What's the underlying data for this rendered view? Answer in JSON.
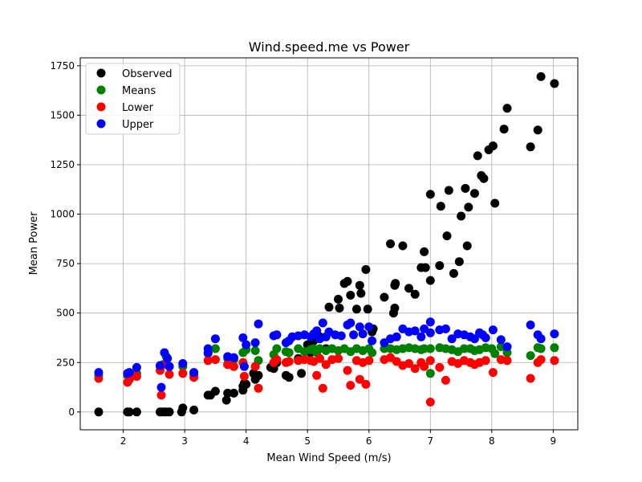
{
  "chart_data": {
    "type": "scatter",
    "title": "Wind.speed.me vs Power",
    "xlabel": "Mean Wind Speed (m/s)",
    "ylabel": "Mean Power",
    "xlim": [
      1.3,
      9.4
    ],
    "ylim": [
      -90,
      1790
    ],
    "xticks": [
      2,
      3,
      4,
      5,
      6,
      7,
      8,
      9
    ],
    "yticks": [
      0,
      250,
      500,
      750,
      1000,
      1250,
      1500,
      1750
    ],
    "grid": true,
    "legend_position": "top-left",
    "series": [
      {
        "name": "Observed",
        "color": "#000000",
        "points": [
          [
            1.6,
            0
          ],
          [
            2.07,
            0
          ],
          [
            2.1,
            0
          ],
          [
            2.22,
            0
          ],
          [
            2.6,
            0
          ],
          [
            2.65,
            0
          ],
          [
            2.7,
            0
          ],
          [
            2.75,
            0
          ],
          [
            2.95,
            0
          ],
          [
            2.97,
            20
          ],
          [
            3.15,
            10
          ],
          [
            3.38,
            85
          ],
          [
            3.42,
            85
          ],
          [
            3.5,
            105
          ],
          [
            3.68,
            60
          ],
          [
            3.7,
            95
          ],
          [
            3.8,
            95
          ],
          [
            3.95,
            110
          ],
          [
            3.95,
            130
          ],
          [
            3.97,
            145
          ],
          [
            4.0,
            140
          ],
          [
            4.12,
            195
          ],
          [
            4.15,
            165
          ],
          [
            4.2,
            185
          ],
          [
            4.4,
            225
          ],
          [
            4.45,
            220
          ],
          [
            4.5,
            250
          ],
          [
            4.65,
            185
          ],
          [
            4.7,
            175
          ],
          [
            4.85,
            270
          ],
          [
            4.9,
            195
          ],
          [
            5.0,
            340
          ],
          [
            5.05,
            300
          ],
          [
            5.1,
            360
          ],
          [
            5.12,
            390
          ],
          [
            5.15,
            410
          ],
          [
            5.2,
            380
          ],
          [
            5.3,
            320
          ],
          [
            5.35,
            530
          ],
          [
            5.5,
            570
          ],
          [
            5.52,
            525
          ],
          [
            5.6,
            650
          ],
          [
            5.65,
            660
          ],
          [
            5.7,
            590
          ],
          [
            5.8,
            520
          ],
          [
            5.85,
            640
          ],
          [
            5.87,
            600
          ],
          [
            5.95,
            720
          ],
          [
            5.98,
            520
          ],
          [
            6.05,
            405
          ],
          [
            6.07,
            420
          ],
          [
            6.25,
            580
          ],
          [
            6.35,
            850
          ],
          [
            6.4,
            500
          ],
          [
            6.42,
            640
          ],
          [
            6.43,
            650
          ],
          [
            6.42,
            525
          ],
          [
            6.55,
            840
          ],
          [
            6.65,
            625
          ],
          [
            6.75,
            595
          ],
          [
            6.85,
            730
          ],
          [
            6.9,
            810
          ],
          [
            6.92,
            730
          ],
          [
            7.0,
            1100
          ],
          [
            7.0,
            665
          ],
          [
            7.15,
            740
          ],
          [
            7.17,
            1040
          ],
          [
            7.27,
            890
          ],
          [
            7.3,
            1120
          ],
          [
            7.38,
            700
          ],
          [
            7.47,
            760
          ],
          [
            7.5,
            990
          ],
          [
            7.57,
            1130
          ],
          [
            7.6,
            840
          ],
          [
            7.62,
            1035
          ],
          [
            7.72,
            1105
          ],
          [
            7.77,
            1295
          ],
          [
            7.83,
            1195
          ],
          [
            7.87,
            1180
          ],
          [
            7.95,
            1325
          ],
          [
            8.02,
            1345
          ],
          [
            8.05,
            1055
          ],
          [
            8.2,
            1430
          ],
          [
            8.25,
            1535
          ],
          [
            8.63,
            1340
          ],
          [
            8.75,
            1425
          ],
          [
            8.8,
            1695
          ],
          [
            9.02,
            1660
          ]
        ]
      },
      {
        "name": "Means",
        "color": "#008000",
        "points": [
          [
            1.6,
            185
          ],
          [
            2.07,
            185
          ],
          [
            2.1,
            190
          ],
          [
            2.22,
            195
          ],
          [
            2.6,
            230
          ],
          [
            2.65,
            240
          ],
          [
            2.7,
            280
          ],
          [
            2.75,
            230
          ],
          [
            2.97,
            230
          ],
          [
            3.15,
            190
          ],
          [
            3.38,
            295
          ],
          [
            3.5,
            320
          ],
          [
            3.7,
            270
          ],
          [
            3.8,
            265
          ],
          [
            3.95,
            300
          ],
          [
            4.0,
            315
          ],
          [
            4.15,
            310
          ],
          [
            4.2,
            260
          ],
          [
            4.45,
            290
          ],
          [
            4.5,
            320
          ],
          [
            4.65,
            305
          ],
          [
            4.7,
            300
          ],
          [
            4.85,
            320
          ],
          [
            4.95,
            305
          ],
          [
            5.05,
            315
          ],
          [
            5.1,
            320
          ],
          [
            5.15,
            300
          ],
          [
            5.2,
            320
          ],
          [
            5.3,
            310
          ],
          [
            5.4,
            320
          ],
          [
            5.5,
            310
          ],
          [
            5.6,
            320
          ],
          [
            5.7,
            305
          ],
          [
            5.8,
            320
          ],
          [
            5.9,
            310
          ],
          [
            6.0,
            320
          ],
          [
            6.05,
            300
          ],
          [
            6.25,
            320
          ],
          [
            6.35,
            320
          ],
          [
            6.45,
            315
          ],
          [
            6.55,
            320
          ],
          [
            6.65,
            325
          ],
          [
            6.75,
            320
          ],
          [
            6.85,
            315
          ],
          [
            6.9,
            320
          ],
          [
            7.0,
            195
          ],
          [
            7.0,
            320
          ],
          [
            7.15,
            325
          ],
          [
            7.25,
            320
          ],
          [
            7.35,
            315
          ],
          [
            7.45,
            305
          ],
          [
            7.55,
            320
          ],
          [
            7.65,
            320
          ],
          [
            7.72,
            310
          ],
          [
            7.8,
            315
          ],
          [
            7.9,
            325
          ],
          [
            8.0,
            320
          ],
          [
            8.05,
            295
          ],
          [
            8.15,
            330
          ],
          [
            8.25,
            300
          ],
          [
            8.63,
            285
          ],
          [
            8.75,
            325
          ],
          [
            8.8,
            320
          ],
          [
            9.02,
            325
          ]
        ]
      },
      {
        "name": "Lower",
        "color": "#ff0000",
        "points": [
          [
            1.6,
            170
          ],
          [
            2.07,
            150
          ],
          [
            2.1,
            165
          ],
          [
            2.22,
            180
          ],
          [
            2.6,
            210
          ],
          [
            2.62,
            85
          ],
          [
            2.7,
            240
          ],
          [
            2.75,
            190
          ],
          [
            2.97,
            195
          ],
          [
            3.15,
            175
          ],
          [
            3.38,
            260
          ],
          [
            3.5,
            265
          ],
          [
            3.7,
            240
          ],
          [
            3.8,
            230
          ],
          [
            3.95,
            250
          ],
          [
            3.97,
            180
          ],
          [
            4.15,
            230
          ],
          [
            4.2,
            120
          ],
          [
            4.45,
            250
          ],
          [
            4.5,
            265
          ],
          [
            4.65,
            250
          ],
          [
            4.7,
            255
          ],
          [
            4.85,
            260
          ],
          [
            4.95,
            265
          ],
          [
            5.05,
            260
          ],
          [
            5.1,
            255
          ],
          [
            5.15,
            185
          ],
          [
            5.2,
            270
          ],
          [
            5.25,
            120
          ],
          [
            5.3,
            240
          ],
          [
            5.4,
            265
          ],
          [
            5.5,
            270
          ],
          [
            5.65,
            210
          ],
          [
            5.7,
            135
          ],
          [
            5.8,
            260
          ],
          [
            5.85,
            165
          ],
          [
            5.9,
            250
          ],
          [
            5.95,
            140
          ],
          [
            6.0,
            260
          ],
          [
            6.25,
            265
          ],
          [
            6.35,
            275
          ],
          [
            6.45,
            255
          ],
          [
            6.55,
            235
          ],
          [
            6.65,
            245
          ],
          [
            6.75,
            220
          ],
          [
            6.85,
            250
          ],
          [
            6.9,
            230
          ],
          [
            7.0,
            50
          ],
          [
            7.0,
            260
          ],
          [
            7.15,
            225
          ],
          [
            7.25,
            160
          ],
          [
            7.35,
            255
          ],
          [
            7.45,
            245
          ],
          [
            7.55,
            260
          ],
          [
            7.65,
            250
          ],
          [
            7.72,
            240
          ],
          [
            7.8,
            250
          ],
          [
            7.9,
            260
          ],
          [
            8.02,
            200
          ],
          [
            8.15,
            265
          ],
          [
            8.25,
            260
          ],
          [
            8.63,
            170
          ],
          [
            8.75,
            250
          ],
          [
            8.8,
            265
          ],
          [
            9.02,
            260
          ]
        ]
      },
      {
        "name": "Upper",
        "color": "#0000ff",
        "points": [
          [
            1.6,
            200
          ],
          [
            2.07,
            195
          ],
          [
            2.1,
            200
          ],
          [
            2.22,
            225
          ],
          [
            2.6,
            235
          ],
          [
            2.62,
            125
          ],
          [
            2.67,
            300
          ],
          [
            2.72,
            270
          ],
          [
            2.75,
            230
          ],
          [
            2.97,
            245
          ],
          [
            3.15,
            200
          ],
          [
            3.38,
            320
          ],
          [
            3.38,
            300
          ],
          [
            3.5,
            370
          ],
          [
            3.7,
            280
          ],
          [
            3.8,
            275
          ],
          [
            3.95,
            375
          ],
          [
            3.97,
            230
          ],
          [
            4.0,
            340
          ],
          [
            4.15,
            350
          ],
          [
            4.2,
            445
          ],
          [
            4.45,
            385
          ],
          [
            4.5,
            390
          ],
          [
            4.65,
            350
          ],
          [
            4.7,
            360
          ],
          [
            4.75,
            380
          ],
          [
            4.85,
            385
          ],
          [
            4.95,
            390
          ],
          [
            5.05,
            380
          ],
          [
            5.1,
            395
          ],
          [
            5.15,
            410
          ],
          [
            5.2,
            370
          ],
          [
            5.25,
            450
          ],
          [
            5.3,
            380
          ],
          [
            5.35,
            405
          ],
          [
            5.45,
            390
          ],
          [
            5.55,
            385
          ],
          [
            5.65,
            440
          ],
          [
            5.7,
            450
          ],
          [
            5.75,
            390
          ],
          [
            5.85,
            430
          ],
          [
            5.9,
            395
          ],
          [
            6.0,
            430
          ],
          [
            6.05,
            360
          ],
          [
            6.25,
            350
          ],
          [
            6.35,
            370
          ],
          [
            6.45,
            380
          ],
          [
            6.55,
            420
          ],
          [
            6.65,
            405
          ],
          [
            6.75,
            410
          ],
          [
            6.85,
            380
          ],
          [
            6.9,
            420
          ],
          [
            7.0,
            455
          ],
          [
            7.0,
            400
          ],
          [
            7.15,
            415
          ],
          [
            7.25,
            420
          ],
          [
            7.35,
            370
          ],
          [
            7.45,
            395
          ],
          [
            7.55,
            390
          ],
          [
            7.65,
            380
          ],
          [
            7.72,
            370
          ],
          [
            7.8,
            400
          ],
          [
            7.85,
            390
          ],
          [
            7.9,
            375
          ],
          [
            8.02,
            415
          ],
          [
            8.15,
            365
          ],
          [
            8.25,
            330
          ],
          [
            8.63,
            440
          ],
          [
            8.75,
            390
          ],
          [
            8.8,
            370
          ],
          [
            9.02,
            395
          ]
        ]
      }
    ]
  }
}
